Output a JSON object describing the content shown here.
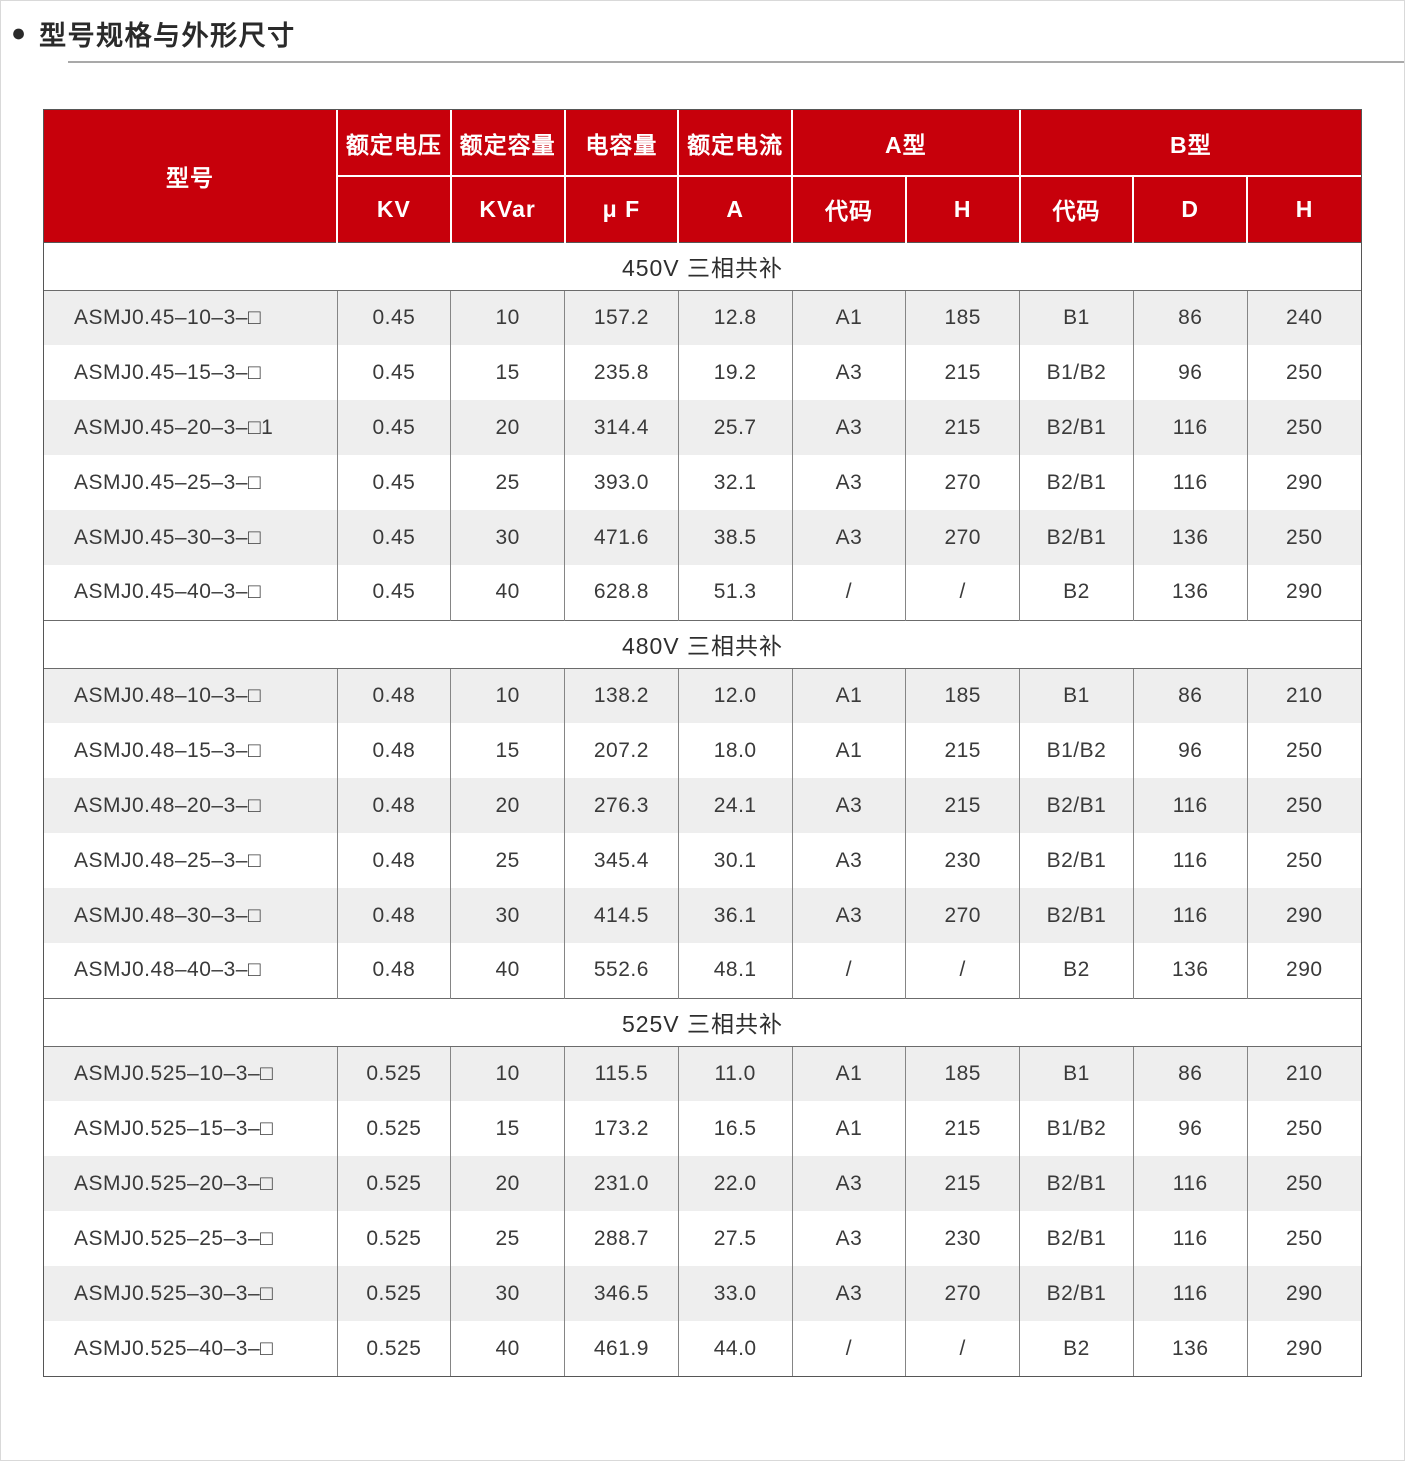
{
  "page": {
    "title": "型号规格与外形尺寸",
    "accent_color": "#c7000b",
    "shade_row_color": "#eeeeee"
  },
  "table": {
    "header": {
      "model": "型号",
      "voltage": "额定电压",
      "voltage_unit": "KV",
      "capacity": "额定容量",
      "capacity_unit": "KVar",
      "capacitance": "电容量",
      "capacitance_unit": "μ F",
      "current": "额定电流",
      "current_unit": "A",
      "type_a": "A型",
      "type_a_code": "代码",
      "type_a_h": "H",
      "type_b": "B型",
      "type_b_code": "代码",
      "type_b_d": "D",
      "type_b_h": "H"
    },
    "sections": [
      {
        "title": "450V 三相共补",
        "rows": [
          [
            "ASMJ0.45–10–3–□",
            "0.45",
            "10",
            "157.2",
            "12.8",
            "A1",
            "185",
            "B1",
            "86",
            "240"
          ],
          [
            "ASMJ0.45–15–3–□",
            "0.45",
            "15",
            "235.8",
            "19.2",
            "A3",
            "215",
            "B1/B2",
            "96",
            "250"
          ],
          [
            "ASMJ0.45–20–3–□1",
            "0.45",
            "20",
            "314.4",
            "25.7",
            "A3",
            "215",
            "B2/B1",
            "116",
            "250"
          ],
          [
            "ASMJ0.45–25–3–□",
            "0.45",
            "25",
            "393.0",
            "32.1",
            "A3",
            "270",
            "B2/B1",
            "116",
            "290"
          ],
          [
            "ASMJ0.45–30–3–□",
            "0.45",
            "30",
            "471.6",
            "38.5",
            "A3",
            "270",
            "B2/B1",
            "136",
            "250"
          ],
          [
            "ASMJ0.45–40–3–□",
            "0.45",
            "40",
            "628.8",
            "51.3",
            "/",
            "/",
            "B2",
            "136",
            "290"
          ]
        ]
      },
      {
        "title": "480V 三相共补",
        "rows": [
          [
            "ASMJ0.48–10–3–□",
            "0.48",
            "10",
            "138.2",
            "12.0",
            "A1",
            "185",
            "B1",
            "86",
            "210"
          ],
          [
            "ASMJ0.48–15–3–□",
            "0.48",
            "15",
            "207.2",
            "18.0",
            "A1",
            "215",
            "B1/B2",
            "96",
            "250"
          ],
          [
            "ASMJ0.48–20–3–□",
            "0.48",
            "20",
            "276.3",
            "24.1",
            "A3",
            "215",
            "B2/B1",
            "116",
            "250"
          ],
          [
            "ASMJ0.48–25–3–□",
            "0.48",
            "25",
            "345.4",
            "30.1",
            "A3",
            "230",
            "B2/B1",
            "116",
            "250"
          ],
          [
            "ASMJ0.48–30–3–□",
            "0.48",
            "30",
            "414.5",
            "36.1",
            "A3",
            "270",
            "B2/B1",
            "116",
            "290"
          ],
          [
            "ASMJ0.48–40–3–□",
            "0.48",
            "40",
            "552.6",
            "48.1",
            "/",
            "/",
            "B2",
            "136",
            "290"
          ]
        ]
      },
      {
        "title": "525V 三相共补",
        "rows": [
          [
            "ASMJ0.525–10–3–□",
            "0.525",
            "10",
            "115.5",
            "11.0",
            "A1",
            "185",
            "B1",
            "86",
            "210"
          ],
          [
            "ASMJ0.525–15–3–□",
            "0.525",
            "15",
            "173.2",
            "16.5",
            "A1",
            "215",
            "B1/B2",
            "96",
            "250"
          ],
          [
            "ASMJ0.525–20–3–□",
            "0.525",
            "20",
            "231.0",
            "22.0",
            "A3",
            "215",
            "B2/B1",
            "116",
            "250"
          ],
          [
            "ASMJ0.525–25–3–□",
            "0.525",
            "25",
            "288.7",
            "27.5",
            "A3",
            "230",
            "B2/B1",
            "116",
            "250"
          ],
          [
            "ASMJ0.525–30–3–□",
            "0.525",
            "30",
            "346.5",
            "33.0",
            "A3",
            "270",
            "B2/B1",
            "116",
            "290"
          ],
          [
            "ASMJ0.525–40–3–□",
            "0.525",
            "40",
            "461.9",
            "44.0",
            "/",
            "/",
            "B2",
            "136",
            "290"
          ]
        ]
      }
    ]
  }
}
